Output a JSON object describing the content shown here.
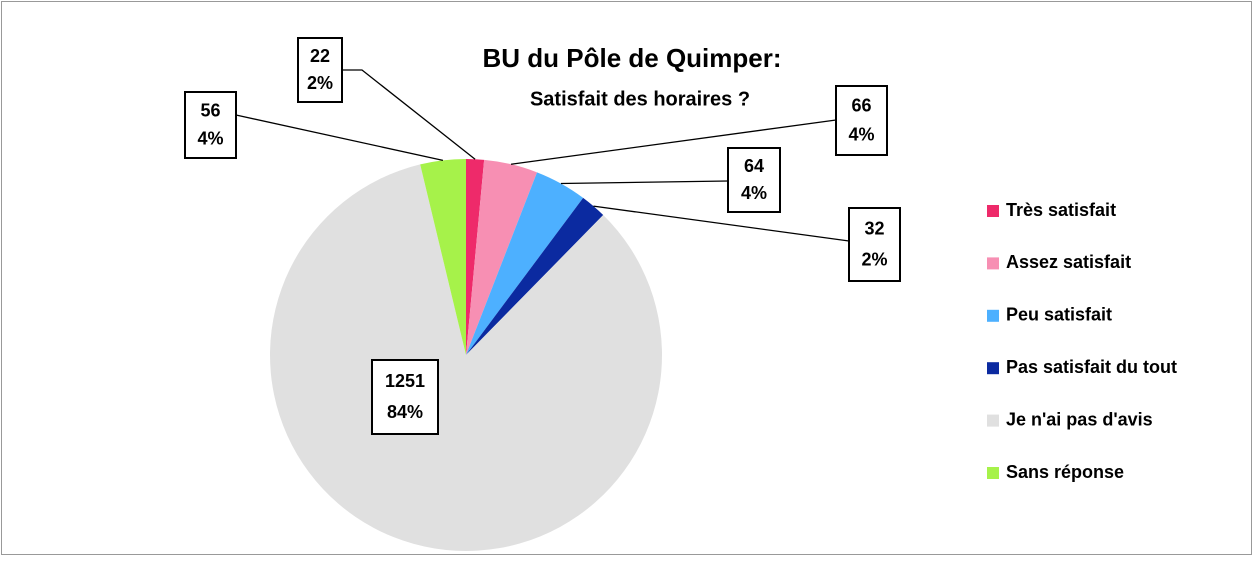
{
  "chart_data": {
    "type": "pie",
    "title": "BU du Pôle de Quimper:",
    "subtitle": "Satisfait des horaires ?",
    "categories": [
      "Très satisfait",
      "Assez satisfait",
      "Peu satisfait",
      "Pas satisfait du tout",
      "Je n'ai pas d'avis",
      "Sans réponse"
    ],
    "values": [
      22,
      66,
      64,
      32,
      1251,
      56
    ],
    "percents": [
      2,
      4,
      4,
      2,
      84,
      4
    ],
    "percent_labels": [
      "2%",
      "4%",
      "4%",
      "2%",
      "84%",
      "4%"
    ],
    "colors": [
      "#ee2a6a",
      "#f78fb3",
      "#4db0ff",
      "#0b2aa0",
      "#e0e0e0",
      "#a6f24a"
    ],
    "legend": "right"
  }
}
